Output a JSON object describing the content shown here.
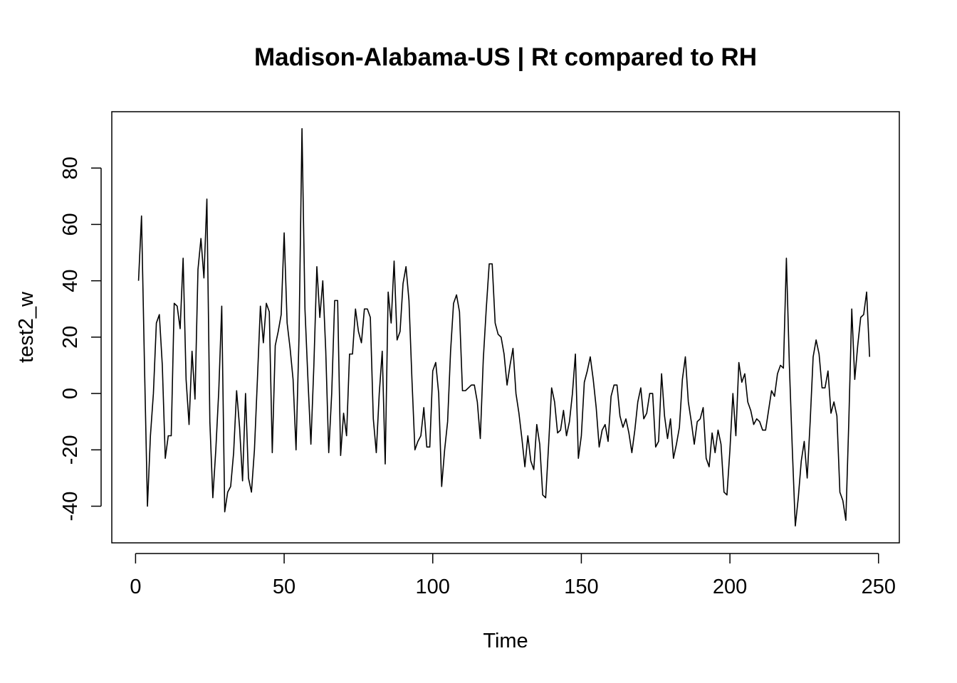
{
  "chart_data": {
    "type": "line",
    "title": "Madison-Alabama-US | Rt compared to RH",
    "xlabel": "Time",
    "ylabel": "test2_w",
    "xlim": [
      -8,
      257
    ],
    "ylim": [
      -53,
      100
    ],
    "xticks": [
      0,
      50,
      100,
      150,
      200,
      250
    ],
    "yticks": [
      -40,
      -20,
      0,
      20,
      40,
      60,
      80
    ],
    "grid": false,
    "line_color": "#000000",
    "series": [
      {
        "x_start": 1,
        "values": [
          40,
          63,
          10,
          -40,
          -15,
          0,
          25,
          28,
          10,
          -23,
          -15,
          -15,
          32,
          31,
          23,
          48,
          5,
          -11,
          15,
          -2,
          44,
          55,
          41,
          69,
          -10,
          -37,
          -20,
          1,
          31,
          -42,
          -35,
          -33,
          -21,
          1,
          -12,
          -31,
          0,
          -30,
          -35,
          -20,
          5,
          31,
          18,
          32,
          29,
          -21,
          17,
          22,
          28,
          57,
          25,
          16,
          5,
          -20,
          20,
          94,
          30,
          5,
          -18,
          10,
          45,
          27,
          40,
          15,
          -21,
          0,
          33,
          33,
          -22,
          -7,
          -15,
          14,
          14,
          30,
          22,
          18,
          30,
          30,
          27,
          -9,
          -21,
          0,
          15,
          -25,
          36,
          25,
          47,
          19,
          22,
          39,
          45,
          33,
          5,
          -20,
          -17,
          -15,
          -5,
          -19,
          -19,
          8,
          11,
          0,
          -33,
          -20,
          -10,
          15,
          32,
          35,
          29,
          1,
          1,
          2,
          3,
          3,
          -3,
          -16,
          12,
          30,
          46,
          46,
          25,
          21,
          20,
          14,
          3,
          10,
          16,
          0,
          -7,
          -16,
          -26,
          -15,
          -24,
          -27,
          -11,
          -18,
          -36,
          -37,
          -18,
          2,
          -3,
          -14,
          -13,
          -6,
          -15,
          -10,
          0,
          14,
          -23,
          -15,
          4,
          8,
          13,
          5,
          -5,
          -19,
          -13,
          -11,
          -17,
          -1,
          3,
          3,
          -8,
          -12,
          -9,
          -14,
          -21,
          -13,
          -3,
          2,
          -9,
          -7,
          0,
          0,
          -19,
          -17,
          7,
          -8,
          -16,
          -9,
          -23,
          -18,
          -12,
          5,
          13,
          -3,
          -10,
          -18,
          -10,
          -9,
          -5,
          -23,
          -26,
          -14,
          -21,
          -13,
          -18,
          -35,
          -36,
          -20,
          0,
          -15,
          11,
          4,
          7,
          -3,
          -6,
          -11,
          -9,
          -10,
          -13,
          -13,
          -6,
          1,
          -1,
          7,
          10,
          9,
          48,
          10,
          -20,
          -47,
          -37,
          -24,
          -17,
          -30,
          -10,
          13,
          19,
          14,
          2,
          2,
          8,
          -7,
          -3,
          -8,
          -35,
          -38,
          -45,
          -10,
          30,
          5,
          17,
          27,
          28,
          36,
          13
        ]
      }
    ]
  }
}
